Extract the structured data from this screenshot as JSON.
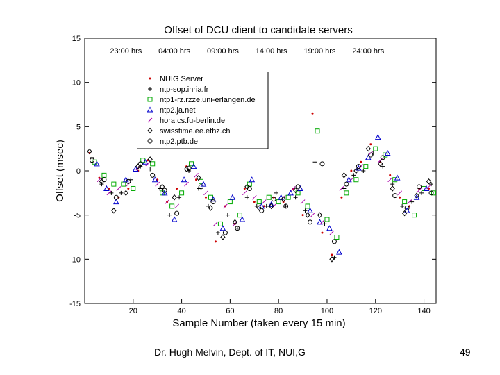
{
  "chart_data": {
    "type": "scatter",
    "title": "Offset of DCU client  to candidate servers",
    "xlabel": "Sample Number (taken every 15 min)",
    "ylabel": "Offset (msec)",
    "xlim": [
      0,
      145
    ],
    "ylim": [
      -15,
      15
    ],
    "x_ticks": [
      20,
      40,
      60,
      80,
      100,
      120,
      140
    ],
    "y_ticks": [
      15,
      10,
      5,
      0,
      -5,
      -10,
      -15
    ],
    "time_labels": [
      {
        "x": 17,
        "label": "23:00 hrs"
      },
      {
        "x": 37,
        "label": "04:00 hrs"
      },
      {
        "x": 57,
        "label": "09:00 hrs"
      },
      {
        "x": 77,
        "label": "14:00 hrs"
      },
      {
        "x": 97,
        "label": "19:00 hrs"
      },
      {
        "x": 117,
        "label": "24:00 hrs"
      }
    ],
    "legend_position": "top-left",
    "series": [
      {
        "name": "NUIG Server",
        "marker": "dot",
        "color": "#cc0000",
        "x": [
          2,
          6,
          10,
          14,
          18,
          22,
          26,
          30,
          34,
          38,
          42,
          46,
          50,
          54,
          58,
          62,
          66,
          70,
          74,
          78,
          82,
          86,
          90,
          94,
          98,
          102,
          106,
          110,
          114,
          118,
          122,
          126,
          130,
          134,
          138,
          142
        ],
        "y": [
          2,
          -0.8,
          -2,
          -3,
          -2,
          0,
          1.2,
          -1,
          -3.5,
          -2,
          0.5,
          -1,
          -3,
          -8,
          -4,
          -6,
          -2,
          -3.5,
          -4,
          -3,
          -3.5,
          -2,
          -5,
          6.5,
          -7,
          -9.5,
          -3,
          0,
          1,
          3,
          1,
          -0.5,
          -3,
          -4,
          -2,
          -2
        ]
      },
      {
        "name": "ntp-sop.inria.fr",
        "marker": "plus",
        "color": "#000000",
        "x": [
          3,
          7,
          11,
          15,
          19,
          23,
          27,
          31,
          35,
          39,
          43,
          47,
          51,
          55,
          59,
          63,
          67,
          71,
          75,
          79,
          83,
          87,
          91,
          95,
          99,
          103,
          107,
          111,
          115,
          119,
          123,
          127,
          131,
          135,
          139,
          143
        ],
        "y": [
          1.5,
          -1.5,
          -2.5,
          -2.5,
          -1,
          0.5,
          0.2,
          -2,
          -5,
          -3,
          0,
          -2,
          -4,
          -7,
          -5,
          -6.5,
          -3,
          -4,
          -4,
          -2.5,
          -4,
          -3,
          -4.5,
          1,
          -6,
          -9.8,
          -2,
          -0.5,
          0,
          2,
          0.5,
          -1.5,
          -4,
          -3.5,
          -2.5,
          -1.5
        ]
      },
      {
        "name": "ntp1-rz.rzze.uni-erlangen.de",
        "marker": "square",
        "color": "#00aa00",
        "x": [
          4,
          8,
          12,
          16,
          20,
          24,
          28,
          32,
          36,
          40,
          44,
          48,
          52,
          56,
          60,
          64,
          68,
          72,
          76,
          80,
          84,
          88,
          92,
          96,
          100,
          104,
          108,
          112,
          116,
          120,
          124,
          128,
          132,
          136,
          140,
          144
        ],
        "y": [
          1,
          -0.5,
          -1.5,
          -1.5,
          -2,
          1.2,
          0.8,
          -2.5,
          -4,
          -2.5,
          0.8,
          -1.2,
          -3,
          -6,
          -3.5,
          -5,
          -1.5,
          -3.5,
          -3,
          -3.5,
          -3,
          -2.5,
          -4,
          4.5,
          -5.5,
          -7.5,
          -2.5,
          -1,
          0.5,
          2.5,
          1.8,
          -1,
          -3.5,
          -5,
          -2,
          -2.5
        ]
      },
      {
        "name": "ntp2.ja.net",
        "marker": "triangle",
        "color": "#0000cc",
        "x": [
          5,
          9,
          13,
          17,
          21,
          25,
          29,
          33,
          37,
          41,
          45,
          49,
          53,
          57,
          61,
          65,
          69,
          73,
          77,
          81,
          85,
          89,
          93,
          97,
          101,
          105,
          109,
          113,
          117,
          121,
          125,
          129,
          133,
          137,
          141
        ],
        "y": [
          0.8,
          -2,
          -3.5,
          -1,
          0.2,
          1,
          -1,
          -2.5,
          -5.5,
          -1,
          0.5,
          -1.5,
          -3.2,
          -6.5,
          -3,
          -5.5,
          -1,
          -4,
          -3.8,
          -3,
          -2.5,
          -2,
          -4.5,
          -5.8,
          -6.5,
          -9.2,
          -1,
          0.3,
          1.5,
          3.8,
          2,
          -0.8,
          -4.5,
          -3,
          -2
        ]
      },
      {
        "name": "hora.cs.fu-berlin.de",
        "marker": "slash",
        "color": "#aa00aa",
        "x": [
          6,
          10,
          14,
          18,
          22,
          26,
          30,
          34,
          38,
          42,
          46,
          50,
          54,
          58,
          62,
          66,
          70,
          74,
          78,
          82,
          86,
          90,
          94,
          98,
          102,
          106,
          110,
          114,
          118,
          122,
          126,
          130,
          134,
          138,
          142
        ],
        "y": [
          -1,
          -2.5,
          -2,
          -1.5,
          0.3,
          0.8,
          -1.5,
          -3.5,
          -4,
          -1.5,
          -0.5,
          -2.5,
          -6,
          -4,
          -6,
          -2.5,
          -3,
          -3.5,
          -4,
          -3,
          -2,
          -3.5,
          -5,
          -5.8,
          -7,
          -2,
          -1,
          0.5,
          2,
          1.2,
          -1,
          -2.5,
          -3.5,
          -2.2,
          -1.8
        ]
      },
      {
        "name": "swisstime.ee.ethz.ch",
        "marker": "diamond",
        "color": "#000000",
        "x": [
          2,
          7,
          12,
          17,
          22,
          27,
          32,
          37,
          42,
          47,
          52,
          57,
          62,
          67,
          72,
          77,
          82,
          87,
          92,
          97,
          102,
          107,
          112,
          117,
          122,
          127,
          132,
          137,
          142
        ],
        "y": [
          2.2,
          -1.2,
          -4.5,
          -2.5,
          0.5,
          1.3,
          -1.8,
          -3,
          0.2,
          -0.8,
          -4.2,
          -7.5,
          -5.8,
          -1.8,
          -4.2,
          -4,
          -3.2,
          -2.2,
          -5,
          -5,
          -10,
          -0.5,
          0,
          2.5,
          0.8,
          -2,
          -4.8,
          -2.8,
          -1.2
        ]
      },
      {
        "name": "ntp2.ptb.de",
        "marker": "circle",
        "color": "#000000",
        "x": [
          3,
          8,
          13,
          18,
          23,
          28,
          33,
          38,
          43,
          48,
          53,
          58,
          63,
          68,
          73,
          78,
          83,
          88,
          93,
          98,
          103,
          108,
          113,
          118,
          123,
          128,
          133,
          138,
          143
        ],
        "y": [
          1.2,
          -1,
          -3,
          -1.2,
          0.8,
          -0.5,
          -2.2,
          -4.8,
          0.3,
          -1.8,
          -3.5,
          -7,
          -6.5,
          -2,
          -4.5,
          -3.2,
          -4,
          -1.8,
          -5.8,
          0.8,
          -8,
          -1.5,
          0.5,
          1.8,
          1.5,
          -2.8,
          -4.2,
          -1.8,
          -2.5
        ]
      }
    ]
  },
  "footer": {
    "author": "Dr. Hugh Melvin, Dept. of IT, NUI,G",
    "page_number": "49"
  }
}
